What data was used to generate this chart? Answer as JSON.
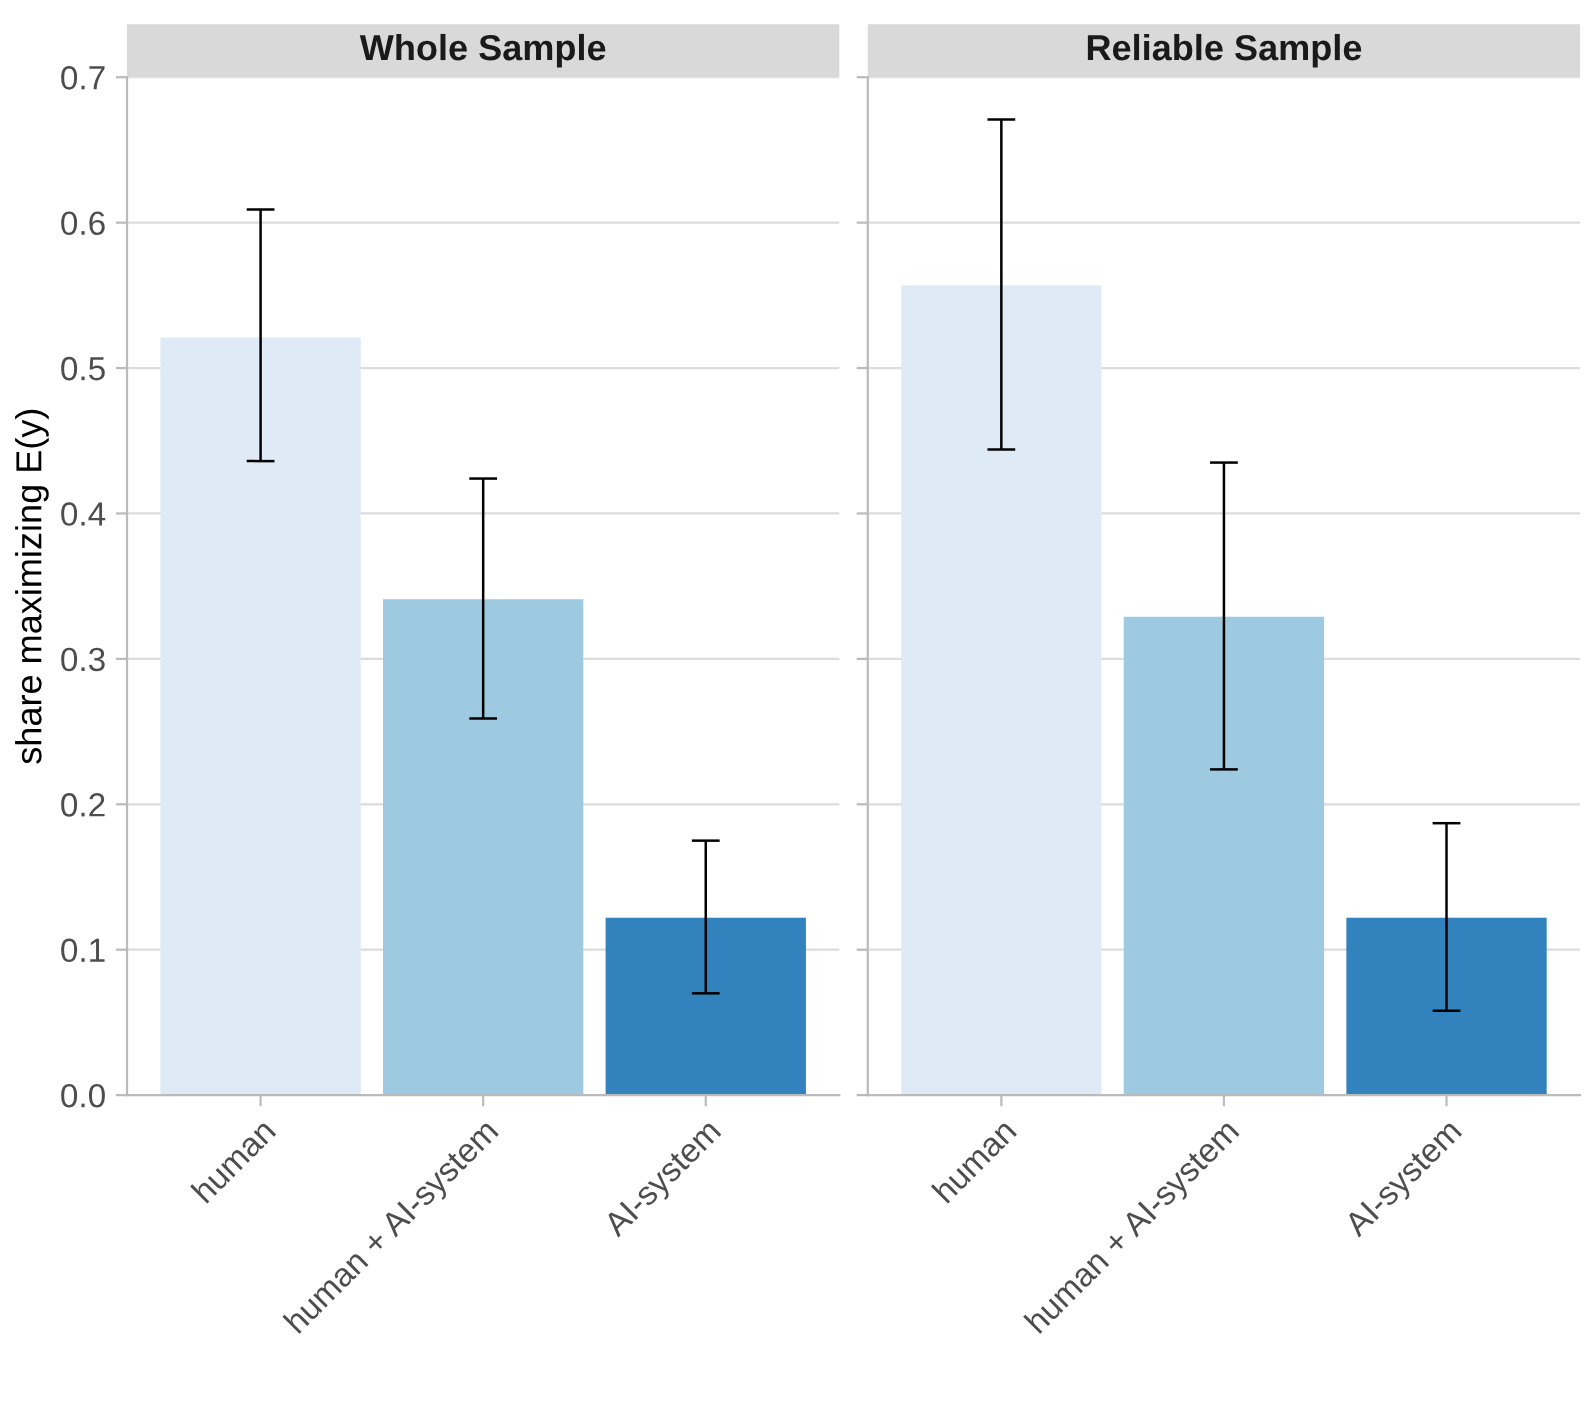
{
  "chart_data": [
    {
      "type": "bar",
      "title": "Whole Sample",
      "ylabel": "share maximizing E(y)",
      "categories": [
        "human",
        "human + AI-system",
        "AI-system"
      ],
      "values": [
        0.521,
        0.341,
        0.122
      ],
      "colors": [
        "#deebf7",
        "#9ecae1",
        "#3182bd"
      ],
      "errors": [
        [
          0.436,
          0.609
        ],
        [
          0.259,
          0.424
        ],
        [
          0.07,
          0.175
        ]
      ],
      "ylim": [
        0,
        0.7
      ],
      "yticks": [
        {
          "value": 0,
          "label": "0.0"
        },
        0.1,
        0.2,
        0.3,
        0.4,
        0.5,
        0.6,
        0.7
      ],
      "grid": "y"
    },
    {
      "type": "bar",
      "title": "Reliable Sample",
      "categories": [
        "human",
        "human + AI-system",
        "AI-system"
      ],
      "values": [
        0.557,
        0.329,
        0.122
      ],
      "colors": [
        "#deebf7",
        "#9ecae1",
        "#3182bd"
      ],
      "errors": [
        [
          0.444,
          0.671
        ],
        [
          0.224,
          0.435
        ],
        [
          0.058,
          0.187
        ]
      ],
      "ylim": [
        0,
        0.7
      ],
      "yticks": [
        0,
        0.1,
        0.2,
        0.3,
        0.4,
        0.5,
        0.6,
        0.7
      ],
      "grid": "y",
      "tick_labels": "x"
    }
  ]
}
